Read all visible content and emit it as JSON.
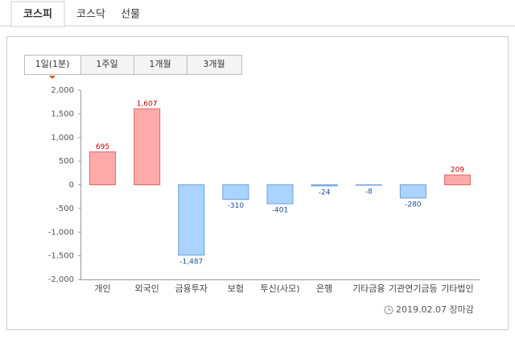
{
  "tabs": [
    "코스피",
    "코스닥",
    "선물"
  ],
  "period_tabs": [
    "1일(1분)",
    "1주일",
    "1개월",
    "3개월"
  ],
  "footer": "2019.02.07 장마감",
  "chart_data": {
    "type": "bar",
    "categories": [
      "개인",
      "외국인",
      "금융투자",
      "보험",
      "투신(사모)",
      "은행",
      "기타금융",
      "기관연기금등",
      "기타법인"
    ],
    "values": [
      695,
      1607,
      -1487,
      -310,
      -401,
      -24,
      -8,
      -280,
      209
    ],
    "value_labels": [
      "695",
      "1,607",
      "-1,487",
      "-310",
      "-401",
      "-24",
      "-8",
      "-280",
      "209"
    ],
    "positive_color": "#ffaaaa",
    "negative_color": "#aad4ff",
    "ylim": [
      -2000,
      2000
    ],
    "yticks": [
      {
        "value": -2000,
        "label": "-2,000"
      },
      {
        "value": -1500,
        "label": "-1,500"
      },
      {
        "value": -1000,
        "label": "-1,000"
      },
      -500,
      0,
      500,
      {
        "value": 1000,
        "label": "1,000"
      },
      {
        "value": 1500,
        "label": "1,500"
      },
      {
        "value": 2000,
        "label": "2,000"
      }
    ],
    "grid": false
  }
}
